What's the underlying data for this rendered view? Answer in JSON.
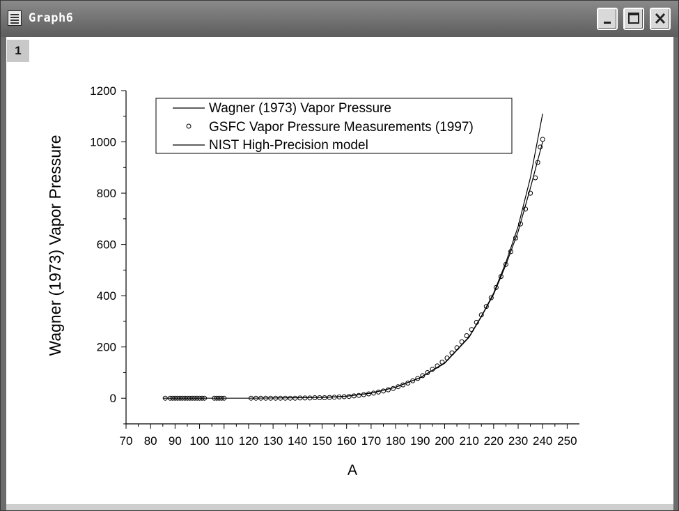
{
  "window": {
    "title": "Graph6",
    "layer_label": "1",
    "controls": {
      "minimize": "minimize-icon",
      "maximize": "maximize-icon",
      "close": "close-icon"
    }
  },
  "chart_data": {
    "type": "line",
    "xlabel": "A",
    "ylabel": "Wagner (1973) Vapor Pressure",
    "xlim": [
      70,
      255
    ],
    "ylim": [
      -100,
      1200
    ],
    "x_ticks": [
      70,
      80,
      90,
      100,
      110,
      120,
      130,
      140,
      150,
      160,
      170,
      180,
      190,
      200,
      210,
      220,
      230,
      240,
      250
    ],
    "y_ticks": [
      0,
      200,
      400,
      600,
      800,
      1000,
      1200
    ],
    "legend": {
      "placement": "top-left",
      "entries": [
        {
          "label": "Wagner (1973) Vapor Pressure",
          "marker": "line"
        },
        {
          "label": "GSFC Vapor Pressure Measurements (1997)",
          "marker": "circle"
        },
        {
          "label": "NIST High-Precision model",
          "marker": "line"
        }
      ]
    },
    "series": [
      {
        "name": "Wagner (1973) Vapor Pressure",
        "kind": "line",
        "x": [
          85,
          100,
          120,
          140,
          150,
          160,
          170,
          180,
          190,
          200,
          210,
          215,
          220,
          225,
          230,
          235,
          240
        ],
        "y": [
          0,
          0,
          0,
          2,
          3,
          8,
          20,
          43,
          80,
          138,
          240,
          320,
          410,
          530,
          670,
          860,
          1110
        ]
      },
      {
        "name": "GSFC Vapor Pressure Measurements (1997)",
        "kind": "scatter",
        "x": [
          86,
          88,
          89,
          90,
          91,
          92,
          93,
          94,
          95,
          96,
          97,
          98,
          99,
          100,
          101,
          102,
          106,
          107,
          108,
          109,
          110,
          121,
          123,
          125,
          127,
          129,
          131,
          133,
          135,
          137,
          139,
          141,
          143,
          145,
          147,
          149,
          151,
          153,
          155,
          157,
          159,
          161,
          163,
          165,
          167,
          169,
          171,
          173,
          175,
          177,
          179,
          181,
          183,
          185,
          187,
          189,
          191,
          193,
          195,
          197,
          199,
          201,
          203,
          205,
          207,
          209,
          211,
          213,
          215,
          217,
          219,
          221,
          223,
          225,
          227,
          229,
          231,
          233,
          235,
          237,
          238,
          239,
          240
        ],
        "y": [
          0,
          0,
          0,
          0,
          0,
          0,
          0,
          0,
          0,
          0,
          0,
          0,
          0,
          0,
          0,
          0,
          0,
          0,
          0,
          0,
          0,
          0,
          0,
          0,
          0,
          0,
          0,
          0,
          0,
          0,
          0,
          1,
          1,
          1,
          2,
          2,
          2,
          3,
          4,
          5,
          6,
          7,
          9,
          11,
          14,
          17,
          20,
          24,
          28,
          33,
          38,
          45,
          52,
          59,
          68,
          77,
          88,
          100,
          113,
          126,
          141,
          157,
          177,
          197,
          220,
          244,
          268,
          296,
          325,
          358,
          392,
          432,
          475,
          522,
          572,
          625,
          680,
          738,
          800,
          860,
          920,
          980,
          1010
        ]
      },
      {
        "name": "NIST High-Precision model",
        "kind": "line",
        "x": [
          150,
          160,
          170,
          180,
          190,
          200,
          210,
          215,
          220,
          225,
          230,
          235,
          240
        ],
        "y": [
          3,
          8,
          20,
          43,
          80,
          136,
          238,
          318,
          405,
          520,
          650,
          820,
          1000
        ]
      }
    ]
  }
}
